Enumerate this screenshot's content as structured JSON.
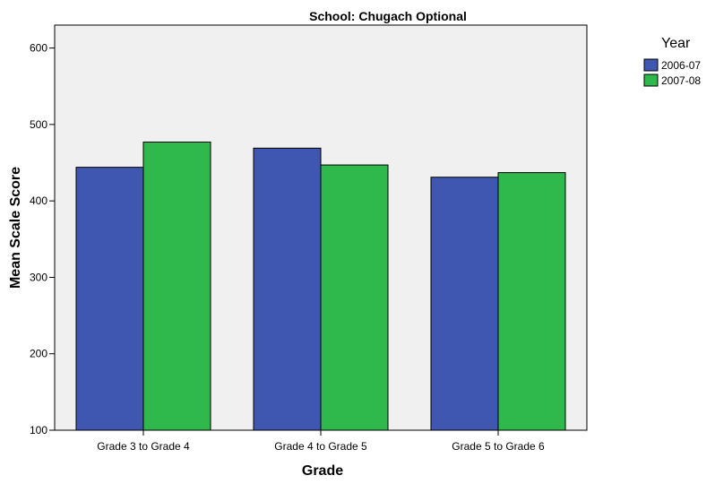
{
  "chart_data": {
    "type": "bar",
    "title": "School: Chugach Optional",
    "xlabel": "Grade",
    "ylabel": "Mean Scale Score",
    "categories": [
      "Grade 3 to Grade 4",
      "Grade 4 to Grade 5",
      "Grade 5 to Grade 6"
    ],
    "series": [
      {
        "name": "2006-07",
        "values": [
          444,
          469,
          431
        ],
        "color": "#3f57b0"
      },
      {
        "name": "2007-08",
        "values": [
          477,
          447,
          437
        ],
        "color": "#2fb84b"
      }
    ],
    "ylim": [
      100,
      630
    ],
    "yticks": [
      100,
      200,
      300,
      400,
      500,
      600
    ],
    "legend": {
      "title": "Year",
      "position": "top-right"
    },
    "plot_background": "#f0f0f0",
    "grid": false
  }
}
